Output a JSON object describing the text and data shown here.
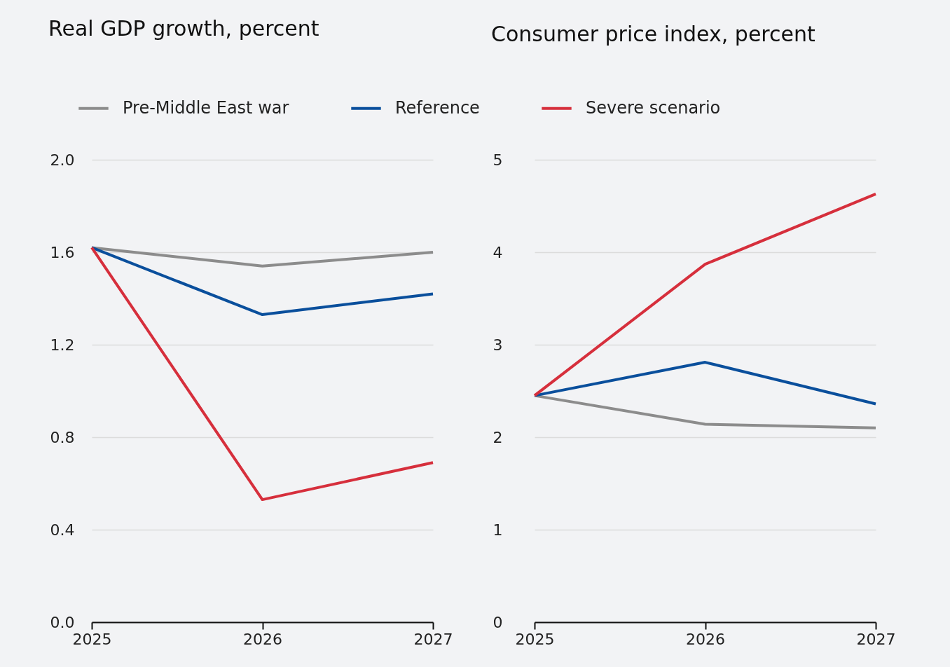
{
  "chart_data": [
    {
      "type": "line",
      "title": "Real GDP growth, percent",
      "categories": [
        "2025",
        "2026",
        "2027"
      ],
      "ylim": [
        0,
        2
      ],
      "yticks": [
        {
          "value": 0,
          "label": "0.0"
        },
        0.4,
        0.8,
        1.2,
        1.6,
        {
          "value": 2,
          "label": "2.0"
        }
      ],
      "grid": "y",
      "legend": "top",
      "series": [
        {
          "name": "Pre-Middle East war",
          "color": "#8c8c8c",
          "values": [
            1.62,
            1.54,
            1.6
          ]
        },
        {
          "name": "Reference",
          "color": "#0a4f9c",
          "values": [
            1.62,
            1.33,
            1.42
          ]
        },
        {
          "name": "Severe scenario",
          "color": "#d62f3c",
          "values": [
            1.62,
            0.53,
            0.69
          ]
        }
      ]
    },
    {
      "type": "line",
      "title": "Consumer price index, percent",
      "categories": [
        "2025",
        "2026",
        "2027"
      ],
      "ylim": [
        0,
        5
      ],
      "yticks": [
        0,
        1,
        2,
        3,
        4,
        5
      ],
      "grid": "y",
      "series": [
        {
          "name": "Pre-Middle East war",
          "color": "#8c8c8c",
          "values": [
            2.45,
            2.14,
            2.1
          ]
        },
        {
          "name": "Reference",
          "color": "#0a4f9c",
          "values": [
            2.45,
            2.81,
            2.36
          ]
        },
        {
          "name": "Severe scenario",
          "color": "#d62f3c",
          "values": [
            2.45,
            3.87,
            4.63
          ]
        }
      ]
    }
  ]
}
